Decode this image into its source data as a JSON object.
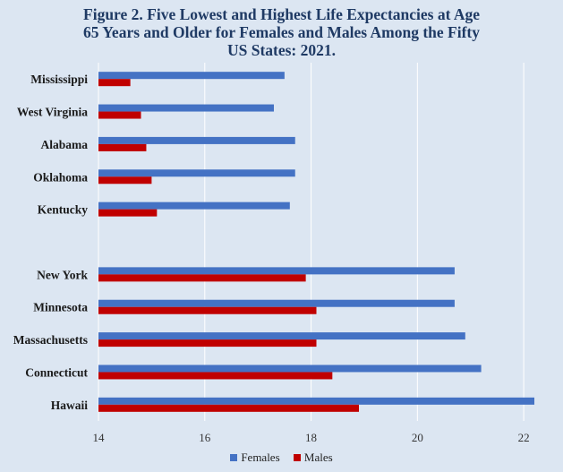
{
  "chart_data": {
    "type": "bar",
    "orientation": "horizontal",
    "title_lines": [
      "Figure 2. Five Lowest and Highest Life Expectancies at Age",
      "65 Years and Older for Females and Males Among the Fifty",
      "US States: 2021."
    ],
    "categories": [
      "Mississippi",
      "West Virginia",
      "Alabama",
      "Oklahoma",
      "Kentucky",
      "",
      "New York",
      "Minnesota",
      "Massachusetts",
      "Connecticut",
      "Hawaii"
    ],
    "series": [
      {
        "name": "Females",
        "color": "#4472c4",
        "values": [
          17.5,
          17.3,
          17.7,
          17.7,
          17.6,
          null,
          20.7,
          20.7,
          20.9,
          21.2,
          22.2
        ]
      },
      {
        "name": "Males",
        "color": "#c00000",
        "values": [
          14.6,
          14.8,
          14.9,
          15.0,
          15.1,
          null,
          17.9,
          18.1,
          18.1,
          18.4,
          18.9
        ]
      }
    ],
    "xlim": [
      14,
      22.2
    ],
    "xticks": [
      "14",
      "16",
      "18",
      "20",
      "22"
    ],
    "grid": true,
    "legend_position": "bottom"
  }
}
